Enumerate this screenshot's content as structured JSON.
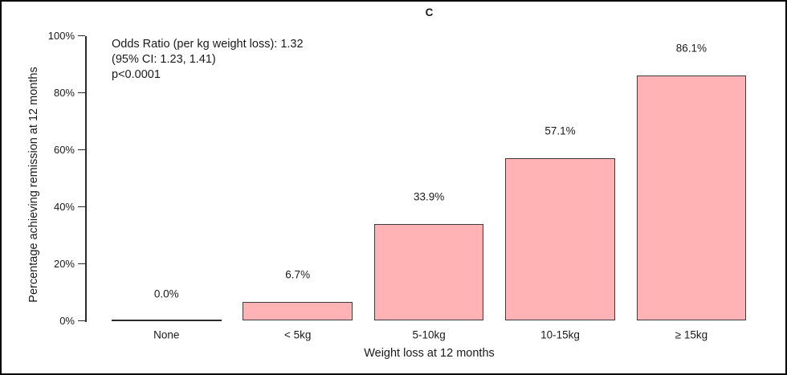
{
  "colors": {
    "background": "#ffffff",
    "frame_border": "#000000",
    "bar_fill": "#ffb3b4",
    "bar_border": "#3d3d3d",
    "axis": "#2a2a2a",
    "text": "#1a1a1a"
  },
  "chart_data": {
    "type": "bar",
    "title": "C",
    "categories": [
      "None",
      "< 5kg",
      "5-10kg",
      "10-15kg",
      "≥ 15kg"
    ],
    "values": [
      0.0,
      6.7,
      33.9,
      57.1,
      86.1
    ],
    "bar_labels": [
      "0.0%",
      "6.7%",
      "33.9%",
      "57.1%",
      "86.1%"
    ],
    "xlabel": "Weight loss at 12 months",
    "ylabel": "Percentage achieving remission at 12 months",
    "ylim": [
      0,
      100
    ],
    "yticks": [
      0,
      20,
      40,
      60,
      80,
      100
    ],
    "ytick_labels": [
      "0%",
      "20%",
      "40%",
      "60%",
      "80%",
      "100%"
    ],
    "grid": false,
    "legend": "none",
    "annotation": [
      "Odds Ratio (per kg weight loss): 1.32",
      "(95% CI: 1.23, 1.41)",
      "p<0.0001"
    ]
  }
}
